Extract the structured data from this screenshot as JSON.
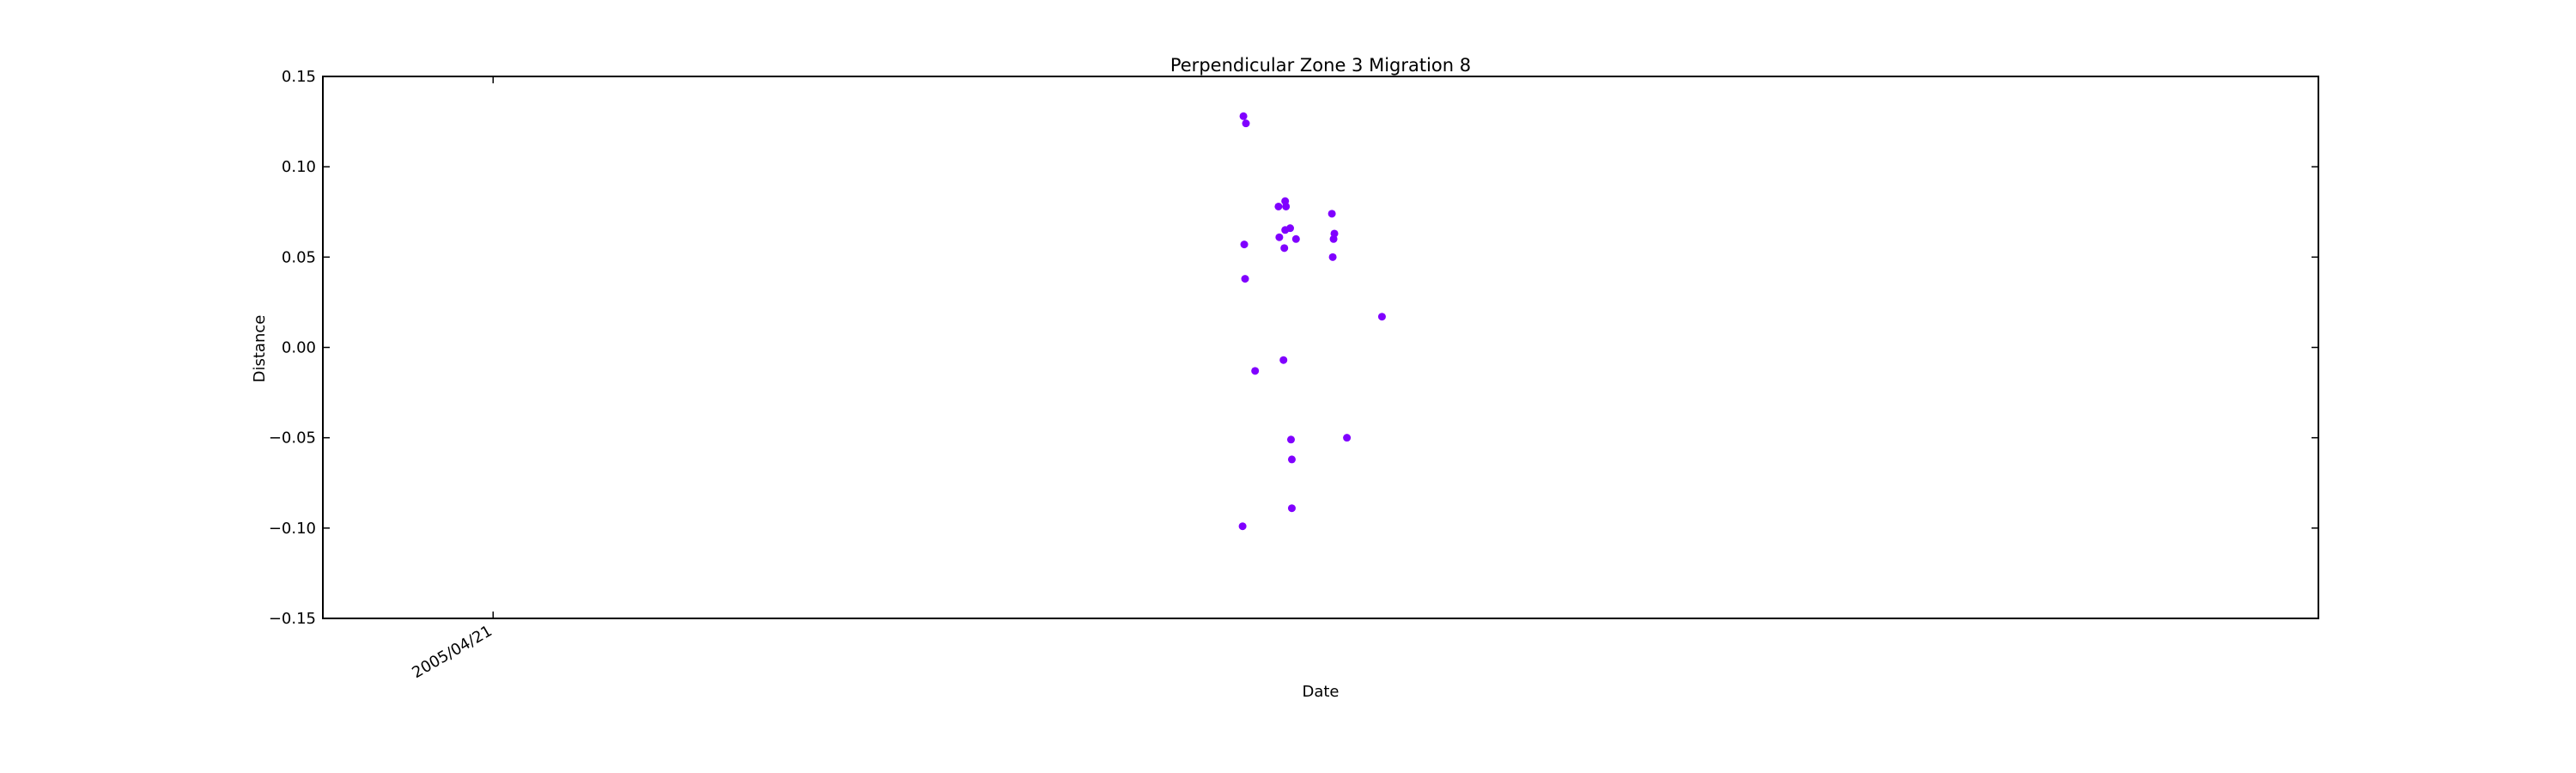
{
  "chart_data": {
    "type": "scatter",
    "title": "Perpendicular Zone 3 Migration 8",
    "xlabel": "Date",
    "ylabel": "Distance",
    "ylim": [
      -0.15,
      0.15
    ],
    "yticks": [
      "−0.15",
      "−0.10",
      "−0.05",
      "0.00",
      "0.05",
      "0.10",
      "0.15"
    ],
    "ytick_values": [
      -0.15,
      -0.1,
      -0.05,
      0.0,
      0.05,
      0.1,
      0.15
    ],
    "xlim": [
      "2004/09/29",
      "2011/04/17"
    ],
    "xticks": [
      {
        "label": "2005/04/21",
        "value": "2005/04/21"
      }
    ],
    "grid": false,
    "marker_color": "#8000ff",
    "series": [
      {
        "x": [
          "2007/10/06",
          "2007/10/07",
          "2007/10/08",
          "2007/10/09",
          "2007/10/10",
          "2007/10/21",
          "2007/11/18",
          "2007/11/19",
          "2007/11/24",
          "2007/11/25",
          "2007/11/26",
          "2007/11/26",
          "2007/11/27",
          "2007/12/02",
          "2007/12/03",
          "2007/12/04",
          "2007/12/04",
          "2007/12/09",
          "2008/01/21",
          "2008/01/22",
          "2008/01/23",
          "2008/01/24",
          "2008/02/08",
          "2008/03/21"
        ],
        "y": [
          -0.099,
          0.128,
          0.057,
          0.038,
          0.124,
          -0.013,
          0.078,
          0.061,
          -0.007,
          0.055,
          0.065,
          0.081,
          0.078,
          0.066,
          -0.051,
          -0.089,
          -0.062,
          0.06,
          0.074,
          0.05,
          0.06,
          0.063,
          -0.05,
          0.017
        ]
      }
    ]
  }
}
